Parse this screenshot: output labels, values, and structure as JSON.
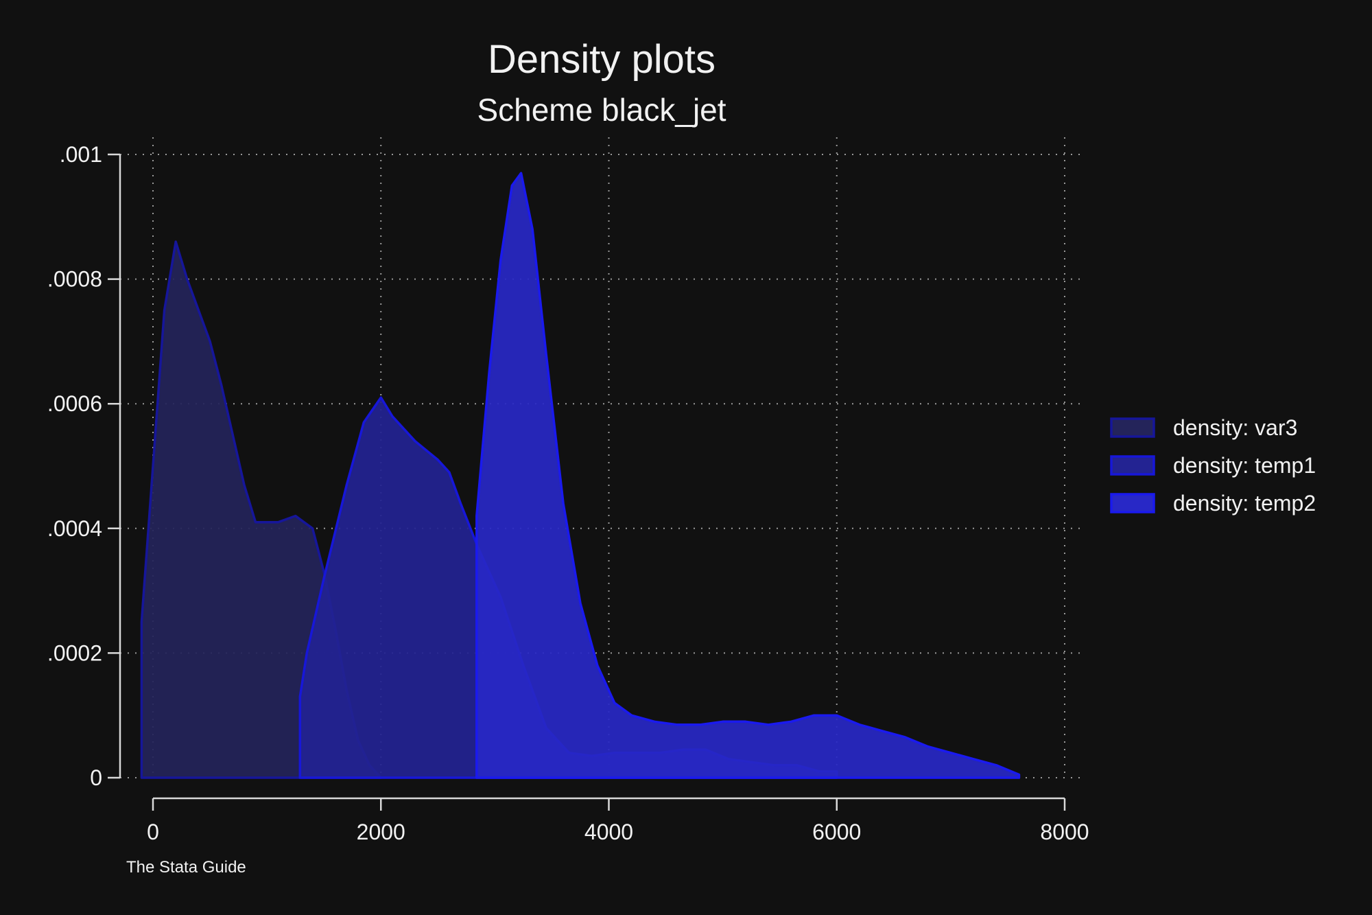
{
  "chart_data": {
    "type": "area",
    "title": "Density plots",
    "subtitle": "Scheme black_jet",
    "note": "The Stata Guide",
    "xlabel": "",
    "ylabel": "",
    "xlim": [
      -100,
      8000
    ],
    "ylim": [
      0,
      0.001
    ],
    "x_ticks": [
      0,
      2000,
      4000,
      6000,
      8000
    ],
    "x_tick_labels": [
      "0",
      "2000",
      "4000",
      "6000",
      "8000"
    ],
    "y_ticks": [
      0,
      0.0002,
      0.0004,
      0.0006,
      0.0008,
      0.001
    ],
    "y_tick_labels": [
      "0",
      ".0002",
      ".0004",
      ".0006",
      ".0008",
      ".001"
    ],
    "grid": true,
    "legend_position": "right",
    "series": [
      {
        "name": "density: var3",
        "fill": "#24245a",
        "stroke": "#16169a",
        "points": [
          [
            -100,
            0
          ],
          [
            -100,
            0.00025
          ],
          [
            0,
            0.0005
          ],
          [
            100,
            0.00075
          ],
          [
            200,
            0.00086
          ],
          [
            300,
            0.0008
          ],
          [
            400,
            0.00075
          ],
          [
            500,
            0.0007
          ],
          [
            600,
            0.00063
          ],
          [
            700,
            0.00055
          ],
          [
            800,
            0.00047
          ],
          [
            900,
            0.00041
          ],
          [
            1000,
            0.00041
          ],
          [
            1100,
            0.00041
          ],
          [
            1250,
            0.00042
          ],
          [
            1400,
            0.0004
          ],
          [
            1500,
            0.00033
          ],
          [
            1600,
            0.00024
          ],
          [
            1700,
            0.00014
          ],
          [
            1800,
            6e-05
          ],
          [
            1900,
            2e-05
          ],
          [
            2000,
            0
          ]
        ]
      },
      {
        "name": "density: temp1",
        "fill": "#232392",
        "stroke": "#1717d8",
        "points": [
          [
            1290,
            0
          ],
          [
            1290,
            0.00013
          ],
          [
            1350,
            0.0002
          ],
          [
            1500,
            0.00032
          ],
          [
            1700,
            0.00047
          ],
          [
            1850,
            0.00057
          ],
          [
            2000,
            0.00061
          ],
          [
            2100,
            0.00058
          ],
          [
            2300,
            0.00054
          ],
          [
            2500,
            0.00051
          ],
          [
            2600,
            0.00049
          ],
          [
            2700,
            0.00044
          ],
          [
            2850,
            0.00037
          ],
          [
            3050,
            0.00029
          ],
          [
            3250,
            0.00018
          ],
          [
            3450,
            8e-05
          ],
          [
            3650,
            4e-05
          ],
          [
            3850,
            3.5e-05
          ],
          [
            4050,
            4e-05
          ],
          [
            4250,
            4e-05
          ],
          [
            4450,
            4e-05
          ],
          [
            4650,
            4.5e-05
          ],
          [
            4850,
            4.5e-05
          ],
          [
            5050,
            3e-05
          ],
          [
            5250,
            2.5e-05
          ],
          [
            5450,
            2e-05
          ],
          [
            5650,
            2e-05
          ],
          [
            5850,
            1e-05
          ],
          [
            6000,
            1e-05
          ],
          [
            6000,
            0
          ]
        ]
      },
      {
        "name": "density: temp2",
        "fill": "#2828c6",
        "stroke": "#1a1aee",
        "points": [
          [
            2840,
            0
          ],
          [
            2840,
            0.00042
          ],
          [
            2950,
            0.00065
          ],
          [
            3050,
            0.00083
          ],
          [
            3150,
            0.00095
          ],
          [
            3230,
            0.00097
          ],
          [
            3330,
            0.00088
          ],
          [
            3450,
            0.00068
          ],
          [
            3600,
            0.00044
          ],
          [
            3750,
            0.00028
          ],
          [
            3900,
            0.00018
          ],
          [
            4050,
            0.00012
          ],
          [
            4200,
            0.0001
          ],
          [
            4400,
            9e-05
          ],
          [
            4600,
            8.5e-05
          ],
          [
            4800,
            8.5e-05
          ],
          [
            5000,
            9e-05
          ],
          [
            5200,
            9e-05
          ],
          [
            5400,
            8.5e-05
          ],
          [
            5600,
            9e-05
          ],
          [
            5800,
            0.0001
          ],
          [
            6000,
            0.0001
          ],
          [
            6200,
            8.5e-05
          ],
          [
            6400,
            7.5e-05
          ],
          [
            6600,
            6.5e-05
          ],
          [
            6800,
            5e-05
          ],
          [
            7000,
            4e-05
          ],
          [
            7200,
            3e-05
          ],
          [
            7400,
            2e-05
          ],
          [
            7600,
            5e-06
          ],
          [
            7600,
            0
          ]
        ]
      }
    ]
  }
}
